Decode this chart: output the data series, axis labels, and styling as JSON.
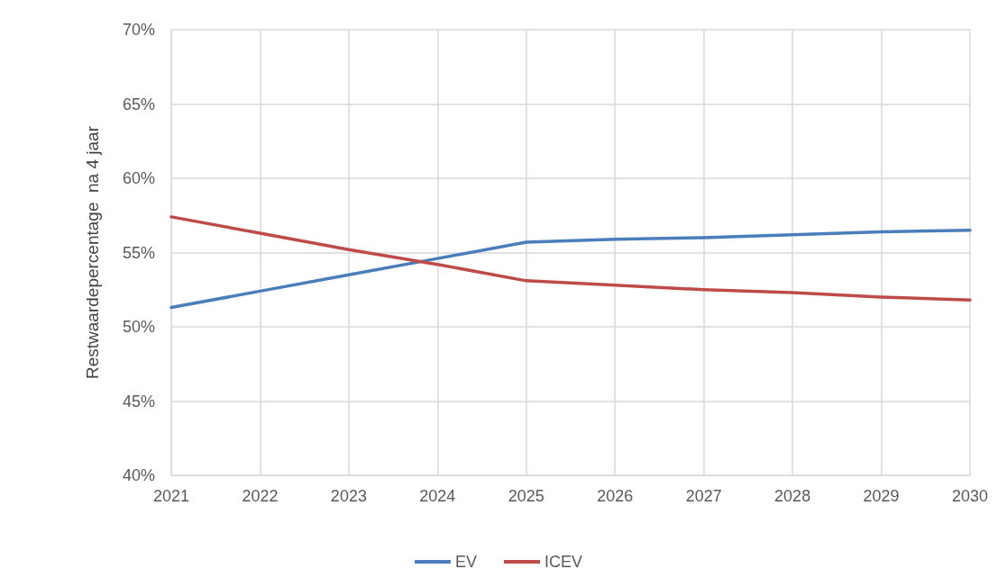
{
  "chart_data": {
    "type": "line",
    "ylabel": "Restwaardepercentage  na 4 jaar",
    "categories": [
      "2021",
      "2022",
      "2023",
      "2024",
      "2025",
      "2026",
      "2027",
      "2028",
      "2029",
      "2030"
    ],
    "series": [
      {
        "name": "EV",
        "color": "#4a7ebb",
        "values": [
          51.3,
          52.4,
          53.5,
          54.6,
          55.7,
          55.9,
          56.0,
          56.2,
          56.4,
          56.5
        ]
      },
      {
        "name": "ICEV",
        "color": "#be4b48",
        "values": [
          57.4,
          56.3,
          55.2,
          54.2,
          53.1,
          52.8,
          52.5,
          52.3,
          52.0,
          51.8
        ]
      }
    ],
    "ylim": [
      40,
      70
    ],
    "yticks": [
      {
        "value": 40,
        "label": "40%"
      },
      {
        "value": 45,
        "label": "45%"
      },
      {
        "value": 50,
        "label": "50%"
      },
      {
        "value": 55,
        "label": "55%"
      },
      {
        "value": 60,
        "label": "60%"
      },
      {
        "value": 65,
        "label": "65%"
      },
      {
        "value": 70,
        "label": "70%"
      }
    ],
    "grid": true,
    "legend": "bottom",
    "marker": "none",
    "line_style": "solid"
  }
}
